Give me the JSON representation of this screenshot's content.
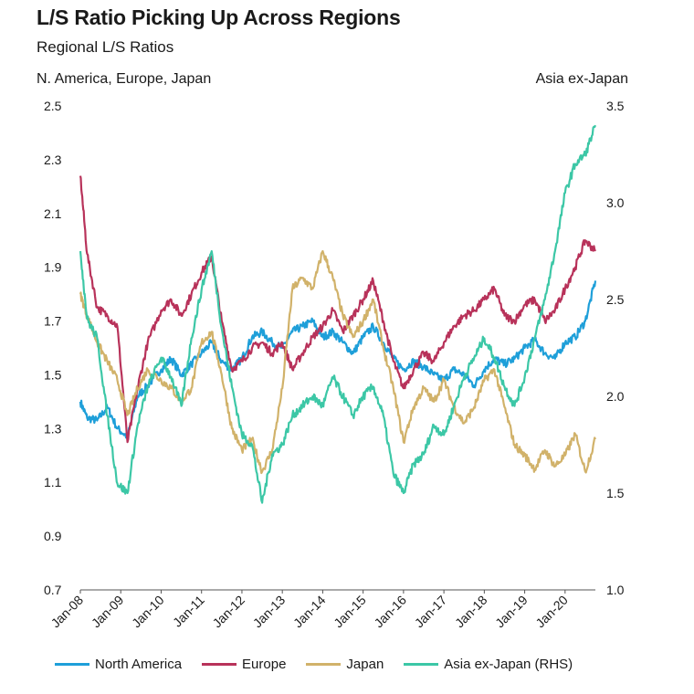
{
  "chart_data": {
    "type": "line",
    "title": "L/S Ratio Picking Up Across Regions",
    "subtitle": "Regional L/S Ratios",
    "left_axis_label": "N. America, Europe, Japan",
    "right_axis_label": "Asia ex-Japan",
    "ylim_left": [
      0.7,
      2.5
    ],
    "ylim_right": [
      1.0,
      3.5
    ],
    "yticks_left": [
      "2.5",
      "2.3",
      "2.1",
      "1.9",
      "1.7",
      "1.5",
      "1.3",
      "1.1",
      "0.9",
      "0.7"
    ],
    "yticks_right": [
      "3.5",
      "3.0",
      "2.5",
      "2.0",
      "1.5",
      "1.0"
    ],
    "x_categories": [
      "Jan-08",
      "Jan-09",
      "Jan-10",
      "Jan-11",
      "Jan-12",
      "Jan-13",
      "Jan-14",
      "Jan-15",
      "Jan-16",
      "Jan-17",
      "Jan-18",
      "Jan-19",
      "Jan-20"
    ],
    "grid": false,
    "legend_position": "bottom",
    "series": [
      {
        "name": "North America",
        "axis": "left",
        "color": "#1e9fd9",
        "points": [
          [
            "2008-01",
            1.4
          ],
          [
            "2008-03",
            1.34
          ],
          [
            "2008-06",
            1.33
          ],
          [
            "2008-09",
            1.38
          ],
          [
            "2008-12",
            1.3
          ],
          [
            "2009-03",
            1.27
          ],
          [
            "2009-06",
            1.42
          ],
          [
            "2009-09",
            1.46
          ],
          [
            "2010-01",
            1.52
          ],
          [
            "2010-04",
            1.56
          ],
          [
            "2010-07",
            1.5
          ],
          [
            "2010-10",
            1.54
          ],
          [
            "2011-01",
            1.58
          ],
          [
            "2011-04",
            1.62
          ],
          [
            "2011-07",
            1.55
          ],
          [
            "2011-10",
            1.52
          ],
          [
            "2012-01",
            1.56
          ],
          [
            "2012-04",
            1.64
          ],
          [
            "2012-07",
            1.66
          ],
          [
            "2012-10",
            1.62
          ],
          [
            "2013-01",
            1.6
          ],
          [
            "2013-04",
            1.66
          ],
          [
            "2013-07",
            1.68
          ],
          [
            "2013-10",
            1.7
          ],
          [
            "2014-01",
            1.64
          ],
          [
            "2014-04",
            1.66
          ],
          [
            "2014-07",
            1.62
          ],
          [
            "2014-10",
            1.58
          ],
          [
            "2015-01",
            1.64
          ],
          [
            "2015-04",
            1.68
          ],
          [
            "2015-07",
            1.62
          ],
          [
            "2015-10",
            1.56
          ],
          [
            "2016-01",
            1.52
          ],
          [
            "2016-04",
            1.55
          ],
          [
            "2016-07",
            1.53
          ],
          [
            "2016-10",
            1.5
          ],
          [
            "2017-01",
            1.48
          ],
          [
            "2017-04",
            1.52
          ],
          [
            "2017-07",
            1.5
          ],
          [
            "2017-10",
            1.46
          ],
          [
            "2018-01",
            1.52
          ],
          [
            "2018-04",
            1.56
          ],
          [
            "2018-07",
            1.54
          ],
          [
            "2018-10",
            1.56
          ],
          [
            "2019-01",
            1.6
          ],
          [
            "2019-04",
            1.63
          ],
          [
            "2019-07",
            1.58
          ],
          [
            "2019-10",
            1.56
          ],
          [
            "2020-01",
            1.62
          ],
          [
            "2020-04",
            1.64
          ],
          [
            "2020-07",
            1.7
          ],
          [
            "2020-10",
            1.85
          ]
        ]
      },
      {
        "name": "Europe",
        "axis": "left",
        "color": "#b8325a",
        "points": [
          [
            "2008-01",
            2.24
          ],
          [
            "2008-03",
            1.95
          ],
          [
            "2008-06",
            1.75
          ],
          [
            "2008-09",
            1.72
          ],
          [
            "2008-12",
            1.68
          ],
          [
            "2009-03",
            1.25
          ],
          [
            "2009-06",
            1.45
          ],
          [
            "2009-09",
            1.62
          ],
          [
            "2010-01",
            1.74
          ],
          [
            "2010-04",
            1.78
          ],
          [
            "2010-07",
            1.72
          ],
          [
            "2010-10",
            1.8
          ],
          [
            "2011-01",
            1.88
          ],
          [
            "2011-04",
            1.94
          ],
          [
            "2011-07",
            1.7
          ],
          [
            "2011-10",
            1.52
          ],
          [
            "2012-01",
            1.55
          ],
          [
            "2012-04",
            1.6
          ],
          [
            "2012-07",
            1.62
          ],
          [
            "2012-10",
            1.58
          ],
          [
            "2013-01",
            1.62
          ],
          [
            "2013-04",
            1.52
          ],
          [
            "2013-07",
            1.58
          ],
          [
            "2013-10",
            1.64
          ],
          [
            "2014-01",
            1.68
          ],
          [
            "2014-04",
            1.74
          ],
          [
            "2014-07",
            1.66
          ],
          [
            "2014-10",
            1.72
          ],
          [
            "2015-01",
            1.78
          ],
          [
            "2015-04",
            1.85
          ],
          [
            "2015-07",
            1.7
          ],
          [
            "2015-10",
            1.55
          ],
          [
            "2016-01",
            1.45
          ],
          [
            "2016-04",
            1.52
          ],
          [
            "2016-07",
            1.58
          ],
          [
            "2016-10",
            1.55
          ],
          [
            "2017-01",
            1.62
          ],
          [
            "2017-04",
            1.68
          ],
          [
            "2017-07",
            1.72
          ],
          [
            "2017-10",
            1.74
          ],
          [
            "2018-01",
            1.78
          ],
          [
            "2018-04",
            1.82
          ],
          [
            "2018-07",
            1.72
          ],
          [
            "2018-10",
            1.7
          ],
          [
            "2019-01",
            1.76
          ],
          [
            "2019-04",
            1.78
          ],
          [
            "2019-07",
            1.7
          ],
          [
            "2019-10",
            1.74
          ],
          [
            "2020-01",
            1.82
          ],
          [
            "2020-04",
            1.9
          ],
          [
            "2020-07",
            2.0
          ],
          [
            "2020-10",
            1.96
          ]
        ]
      },
      {
        "name": "Japan",
        "axis": "left",
        "color": "#d1b26a",
        "points": [
          [
            "2008-01",
            1.8
          ],
          [
            "2008-03",
            1.72
          ],
          [
            "2008-06",
            1.62
          ],
          [
            "2008-09",
            1.55
          ],
          [
            "2008-12",
            1.48
          ],
          [
            "2009-03",
            1.35
          ],
          [
            "2009-06",
            1.45
          ],
          [
            "2009-09",
            1.52
          ],
          [
            "2010-01",
            1.48
          ],
          [
            "2010-04",
            1.45
          ],
          [
            "2010-07",
            1.4
          ],
          [
            "2010-10",
            1.45
          ],
          [
            "2011-01",
            1.62
          ],
          [
            "2011-04",
            1.66
          ],
          [
            "2011-07",
            1.5
          ],
          [
            "2011-10",
            1.3
          ],
          [
            "2012-01",
            1.22
          ],
          [
            "2012-04",
            1.26
          ],
          [
            "2012-07",
            1.14
          ],
          [
            "2012-10",
            1.22
          ],
          [
            "2013-01",
            1.45
          ],
          [
            "2013-04",
            1.82
          ],
          [
            "2013-07",
            1.86
          ],
          [
            "2013-10",
            1.82
          ],
          [
            "2014-01",
            1.96
          ],
          [
            "2014-04",
            1.86
          ],
          [
            "2014-07",
            1.72
          ],
          [
            "2014-10",
            1.64
          ],
          [
            "2015-01",
            1.7
          ],
          [
            "2015-04",
            1.78
          ],
          [
            "2015-07",
            1.6
          ],
          [
            "2015-10",
            1.45
          ],
          [
            "2016-01",
            1.25
          ],
          [
            "2016-04",
            1.38
          ],
          [
            "2016-07",
            1.45
          ],
          [
            "2016-10",
            1.4
          ],
          [
            "2017-01",
            1.48
          ],
          [
            "2017-04",
            1.38
          ],
          [
            "2017-07",
            1.32
          ],
          [
            "2017-10",
            1.38
          ],
          [
            "2018-01",
            1.48
          ],
          [
            "2018-04",
            1.52
          ],
          [
            "2018-07",
            1.38
          ],
          [
            "2018-10",
            1.24
          ],
          [
            "2019-01",
            1.2
          ],
          [
            "2019-04",
            1.15
          ],
          [
            "2019-07",
            1.22
          ],
          [
            "2019-10",
            1.16
          ],
          [
            "2020-01",
            1.2
          ],
          [
            "2020-04",
            1.28
          ],
          [
            "2020-07",
            1.14
          ],
          [
            "2020-10",
            1.26
          ]
        ]
      },
      {
        "name": "Asia ex-Japan (RHS)",
        "axis": "right",
        "color": "#3cc7a6",
        "points": [
          [
            "2008-01",
            2.75
          ],
          [
            "2008-03",
            2.4
          ],
          [
            "2008-06",
            2.3
          ],
          [
            "2008-09",
            1.9
          ],
          [
            "2008-12",
            1.55
          ],
          [
            "2009-03",
            1.5
          ],
          [
            "2009-06",
            1.85
          ],
          [
            "2009-09",
            2.05
          ],
          [
            "2010-01",
            2.2
          ],
          [
            "2010-04",
            2.1
          ],
          [
            "2010-07",
            1.95
          ],
          [
            "2010-10",
            2.3
          ],
          [
            "2011-01",
            2.55
          ],
          [
            "2011-04",
            2.75
          ],
          [
            "2011-07",
            2.35
          ],
          [
            "2011-10",
            2.05
          ],
          [
            "2012-01",
            1.8
          ],
          [
            "2012-04",
            1.75
          ],
          [
            "2012-07",
            1.45
          ],
          [
            "2012-10",
            1.7
          ],
          [
            "2013-01",
            1.75
          ],
          [
            "2013-04",
            1.9
          ],
          [
            "2013-07",
            1.95
          ],
          [
            "2013-10",
            2.0
          ],
          [
            "2014-01",
            1.95
          ],
          [
            "2014-04",
            2.1
          ],
          [
            "2014-07",
            2.0
          ],
          [
            "2014-10",
            1.9
          ],
          [
            "2015-01",
            2.0
          ],
          [
            "2015-04",
            2.05
          ],
          [
            "2015-07",
            1.9
          ],
          [
            "2015-10",
            1.6
          ],
          [
            "2016-01",
            1.5
          ],
          [
            "2016-04",
            1.65
          ],
          [
            "2016-07",
            1.7
          ],
          [
            "2016-10",
            1.85
          ],
          [
            "2017-01",
            1.8
          ],
          [
            "2017-04",
            1.95
          ],
          [
            "2017-07",
            2.1
          ],
          [
            "2017-10",
            2.2
          ],
          [
            "2018-01",
            2.3
          ],
          [
            "2018-04",
            2.2
          ],
          [
            "2018-07",
            2.05
          ],
          [
            "2018-10",
            1.95
          ],
          [
            "2019-01",
            2.1
          ],
          [
            "2019-04",
            2.3
          ],
          [
            "2019-07",
            2.5
          ],
          [
            "2019-10",
            2.75
          ],
          [
            "2020-01",
            3.05
          ],
          [
            "2020-04",
            3.2
          ],
          [
            "2020-07",
            3.25
          ],
          [
            "2020-10",
            3.4
          ]
        ]
      }
    ]
  }
}
